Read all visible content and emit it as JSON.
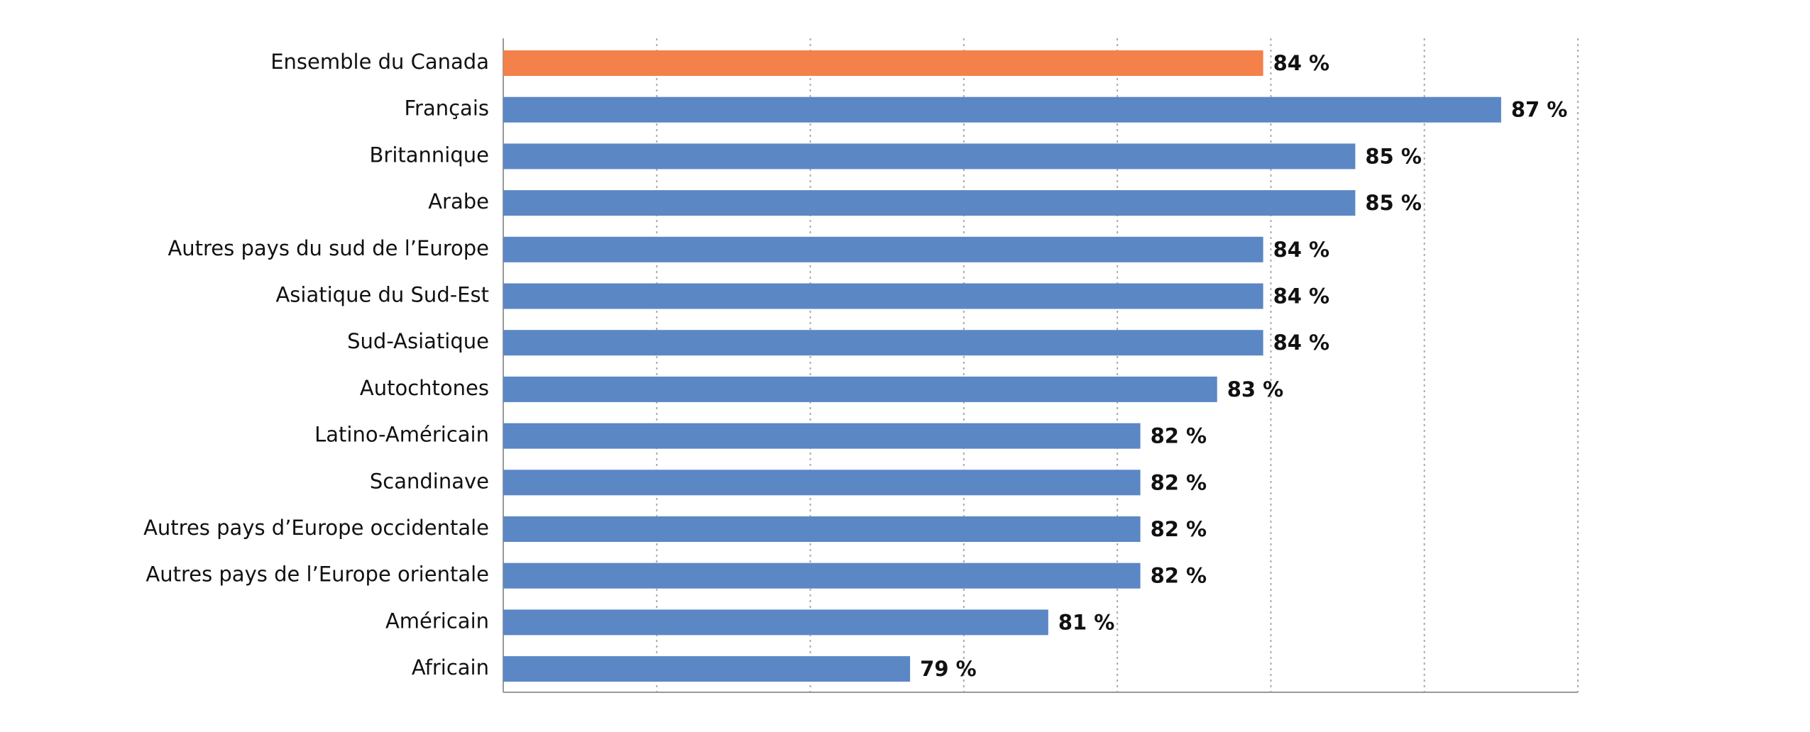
{
  "chart_data": {
    "type": "barh",
    "categories": [
      "Ensemble du Canada",
      "Français",
      "Britannique",
      "Arabe",
      "Autres pays du sud de l’Europe",
      "Asiatique du Sud-Est",
      "Sud-Asiatique",
      "Autochtones",
      "Latino-Américain",
      "Scandinave",
      "Autres pays d’Europe occidentale",
      "Autres pays de l’Europe orientale",
      "Américain",
      "Africain"
    ],
    "values": [
      83.9,
      87.0,
      85.1,
      85.1,
      83.9,
      83.9,
      83.9,
      83.3,
      82.3,
      82.3,
      82.3,
      82.3,
      81.1,
      79.3
    ],
    "value_labels": [
      "84 %",
      "87 %",
      "85 %",
      "85 %",
      "84 %",
      "84 %",
      "84 %",
      "83 %",
      "82 %",
      "82 %",
      "82 %",
      "82 %",
      "81 %",
      "79 %"
    ],
    "colors": [
      "#f4804a",
      "#5b87c5",
      "#5b87c5",
      "#5b87c5",
      "#5b87c5",
      "#5b87c5",
      "#5b87c5",
      "#5b87c5",
      "#5b87c5",
      "#5b87c5",
      "#5b87c5",
      "#5b87c5",
      "#5b87c5",
      "#5b87c5"
    ],
    "xlim": [
      74,
      88
    ],
    "xticks": [
      74,
      76,
      78,
      80,
      82,
      84,
      86,
      88
    ],
    "grid": true
  }
}
